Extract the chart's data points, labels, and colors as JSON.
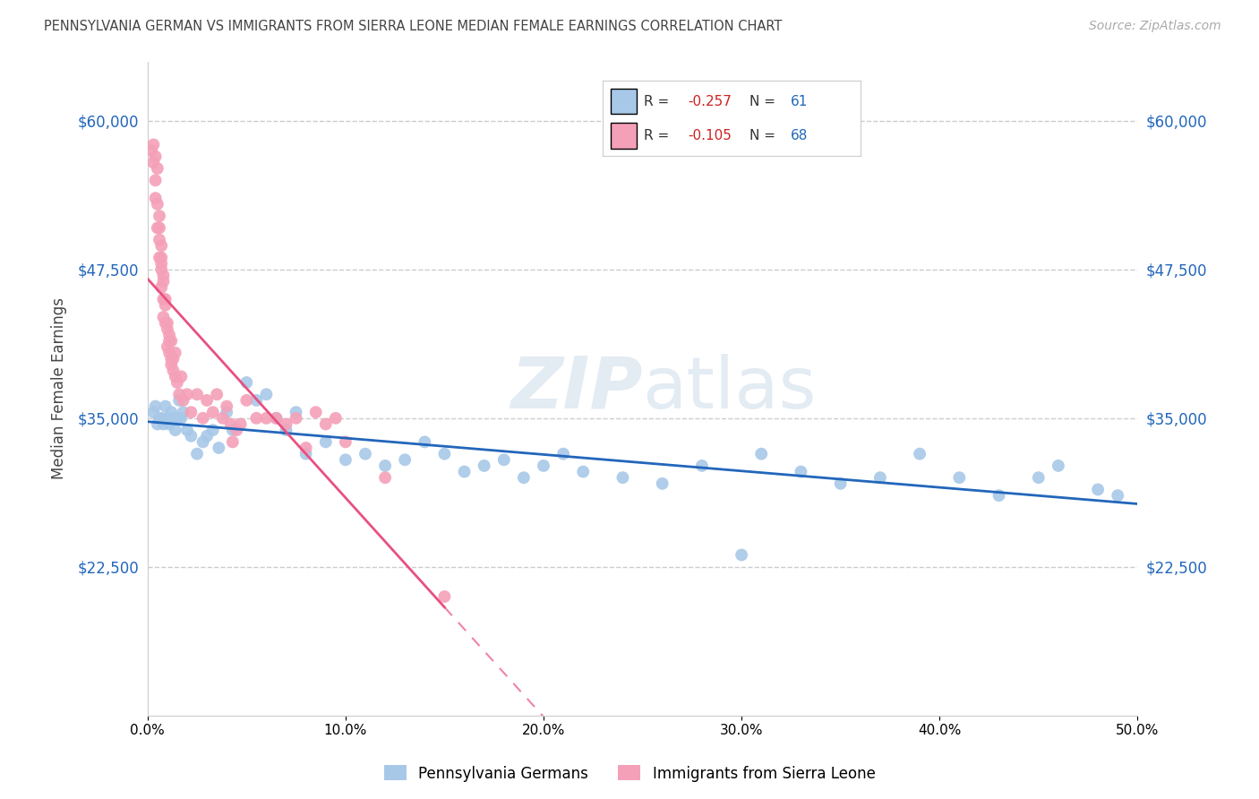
{
  "title": "PENNSYLVANIA GERMAN VS IMMIGRANTS FROM SIERRA LEONE MEDIAN FEMALE EARNINGS CORRELATION CHART",
  "source": "Source: ZipAtlas.com",
  "ylabel": "Median Female Earnings",
  "xmin": 0.0,
  "xmax": 0.5,
  "ymin": 10000,
  "ymax": 65000,
  "blue_R": "-0.257",
  "blue_N": "61",
  "pink_R": "-0.105",
  "pink_N": "68",
  "legend_label_blue": "Pennsylvania Germans",
  "legend_label_pink": "Immigrants from Sierra Leone",
  "blue_color": "#a8c8e8",
  "blue_line_color": "#2266bb",
  "pink_color": "#f4a0b8",
  "pink_line_color": "#e85080",
  "watermark": "ZIPatlas",
  "blue_x": [
    0.003,
    0.004,
    0.005,
    0.006,
    0.007,
    0.008,
    0.009,
    0.01,
    0.011,
    0.012,
    0.013,
    0.014,
    0.015,
    0.016,
    0.017,
    0.018,
    0.02,
    0.022,
    0.025,
    0.028,
    0.03,
    0.033,
    0.036,
    0.04,
    0.043,
    0.05,
    0.055,
    0.06,
    0.065,
    0.07,
    0.075,
    0.08,
    0.09,
    0.1,
    0.11,
    0.12,
    0.13,
    0.14,
    0.15,
    0.16,
    0.17,
    0.18,
    0.19,
    0.2,
    0.21,
    0.22,
    0.24,
    0.26,
    0.28,
    0.3,
    0.31,
    0.33,
    0.35,
    0.37,
    0.39,
    0.41,
    0.43,
    0.45,
    0.46,
    0.48,
    0.49
  ],
  "blue_y": [
    35500,
    36000,
    34500,
    35000,
    35000,
    34500,
    36000,
    35000,
    34500,
    35500,
    35000,
    34000,
    35000,
    36500,
    35000,
    35500,
    34000,
    33500,
    32000,
    33000,
    33500,
    34000,
    32500,
    35500,
    34000,
    38000,
    36500,
    37000,
    35000,
    34000,
    35500,
    32000,
    33000,
    31500,
    32000,
    31000,
    31500,
    33000,
    32000,
    30500,
    31000,
    31500,
    30000,
    31000,
    32000,
    30500,
    30000,
    29500,
    31000,
    23500,
    32000,
    30500,
    29500,
    30000,
    32000,
    30000,
    28500,
    30000,
    31000,
    29000,
    28500
  ],
  "pink_x": [
    0.002,
    0.003,
    0.003,
    0.004,
    0.004,
    0.004,
    0.005,
    0.005,
    0.005,
    0.006,
    0.006,
    0.006,
    0.006,
    0.007,
    0.007,
    0.007,
    0.007,
    0.007,
    0.008,
    0.008,
    0.008,
    0.008,
    0.009,
    0.009,
    0.009,
    0.01,
    0.01,
    0.01,
    0.011,
    0.011,
    0.011,
    0.012,
    0.012,
    0.012,
    0.013,
    0.013,
    0.014,
    0.014,
    0.015,
    0.016,
    0.017,
    0.018,
    0.02,
    0.022,
    0.025,
    0.028,
    0.03,
    0.033,
    0.035,
    0.038,
    0.04,
    0.042,
    0.043,
    0.045,
    0.047,
    0.05,
    0.055,
    0.06,
    0.065,
    0.07,
    0.075,
    0.08,
    0.085,
    0.09,
    0.095,
    0.1,
    0.12,
    0.15
  ],
  "pink_y": [
    57500,
    58000,
    56500,
    55000,
    53500,
    57000,
    53000,
    51000,
    56000,
    52000,
    51000,
    50000,
    48500,
    49500,
    48000,
    47500,
    46000,
    48500,
    47000,
    45000,
    46500,
    43500,
    44500,
    43000,
    45000,
    42500,
    41000,
    43000,
    41500,
    40500,
    42000,
    40000,
    41500,
    39500,
    39000,
    40000,
    38500,
    40500,
    38000,
    37000,
    38500,
    36500,
    37000,
    35500,
    37000,
    35000,
    36500,
    35500,
    37000,
    35000,
    36000,
    34500,
    33000,
    34000,
    34500,
    36500,
    35000,
    35000,
    35000,
    34500,
    35000,
    32500,
    35500,
    34500,
    35000,
    33000,
    30000,
    20000
  ]
}
